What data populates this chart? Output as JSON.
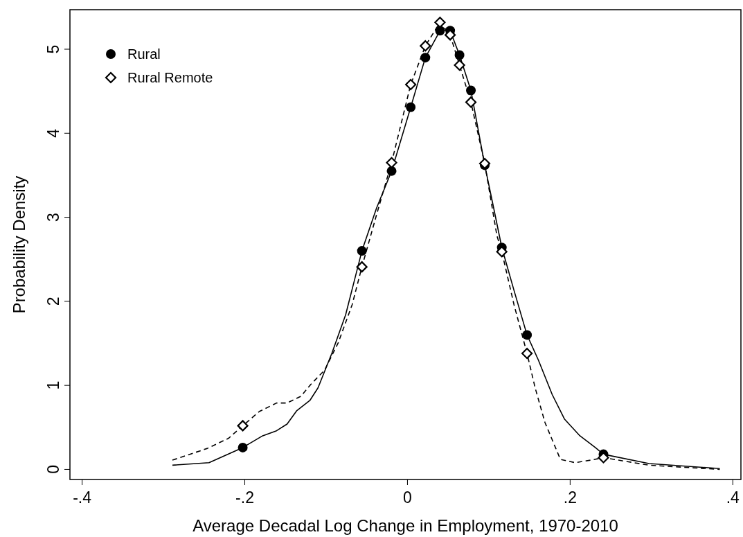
{
  "chart_data": {
    "type": "line",
    "xlabel": "Average Decadal Log Change in Employment, 1970-2010",
    "ylabel": "Probability Density",
    "xlim": [
      -0.415,
      0.41
    ],
    "ylim": [
      -0.12,
      5.47
    ],
    "xticks": [
      {
        "value": -0.4,
        "label": "-.4"
      },
      {
        "value": -0.2,
        "label": "-.2"
      },
      0,
      {
        "value": 0.2,
        "label": ".2"
      },
      {
        "value": 0.4,
        "label": ".4"
      }
    ],
    "yticks": [
      0,
      1,
      2,
      3,
      4,
      5
    ],
    "grid": false,
    "legend": "top left",
    "series": [
      {
        "color": "#000000",
        "line_style": "solid",
        "marker": "none",
        "x": [
          -0.289,
          -0.244,
          -0.2025,
          -0.178,
          -0.161,
          -0.148,
          -0.136,
          -0.12,
          -0.11,
          -0.093,
          -0.076,
          -0.056,
          -0.038,
          -0.0195,
          0.004,
          0.022,
          0.04,
          0.0525,
          0.064,
          0.078,
          0.095,
          0.106,
          0.116,
          0.131,
          0.147,
          0.161,
          0.178,
          0.193,
          0.212,
          0.231,
          0.241,
          0.297,
          0.384
        ],
        "values": [
          0.05,
          0.08,
          0.26,
          0.4,
          0.46,
          0.54,
          0.7,
          0.82,
          0.97,
          1.38,
          1.84,
          2.6,
          3.11,
          3.55,
          4.31,
          4.9,
          5.22,
          5.22,
          4.93,
          4.51,
          3.62,
          3.11,
          2.64,
          2.13,
          1.6,
          1.3,
          0.89,
          0.6,
          0.4,
          0.26,
          0.18,
          0.07,
          0.01
        ]
      },
      {
        "color": "#000000",
        "line_style": "dashed",
        "marker": "none",
        "x": [
          -0.289,
          -0.246,
          -0.22,
          -0.2025,
          -0.182,
          -0.161,
          -0.148,
          -0.131,
          -0.119,
          -0.102,
          -0.085,
          -0.068,
          -0.056,
          -0.038,
          -0.0195,
          0.004,
          0.022,
          0.04,
          0.0525,
          0.064,
          0.078,
          0.095,
          0.11,
          0.116,
          0.131,
          0.147,
          0.157,
          0.169,
          0.188,
          0.206,
          0.225,
          0.241,
          0.297,
          0.384
        ],
        "values": [
          0.11,
          0.25,
          0.37,
          0.52,
          0.69,
          0.79,
          0.79,
          0.87,
          1.01,
          1.18,
          1.51,
          1.96,
          2.41,
          3.03,
          3.65,
          4.58,
          5.04,
          5.32,
          5.17,
          4.81,
          4.37,
          3.64,
          2.78,
          2.59,
          1.96,
          1.38,
          0.97,
          0.56,
          0.12,
          0.08,
          0.11,
          0.14,
          0.05,
          0.0
        ]
      },
      {
        "type": "scatter",
        "name": "Rural",
        "color": "#000000",
        "marker": "circle",
        "x": [
          -0.2025,
          -0.056,
          -0.0195,
          0.004,
          0.022,
          0.04,
          0.0525,
          0.064,
          0.078,
          0.095,
          0.116,
          0.147,
          0.241
        ],
        "values": [
          0.26,
          2.6,
          3.55,
          4.31,
          4.9,
          5.22,
          5.22,
          4.93,
          4.51,
          3.62,
          2.64,
          1.6,
          0.18
        ]
      },
      {
        "type": "scatter",
        "name": "Rural Remote",
        "color": "#000000",
        "marker": "diamond",
        "x": [
          -0.2025,
          -0.056,
          -0.0195,
          0.004,
          0.022,
          0.04,
          0.0525,
          0.064,
          0.078,
          0.095,
          0.116,
          0.147,
          0.241
        ],
        "values": [
          0.52,
          2.41,
          3.65,
          4.58,
          5.04,
          5.32,
          5.17,
          4.81,
          4.37,
          3.64,
          2.59,
          1.38,
          0.14
        ]
      }
    ]
  }
}
